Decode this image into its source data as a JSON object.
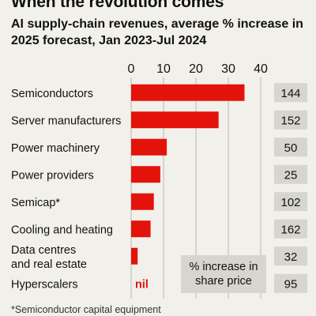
{
  "chart_data": {
    "type": "bar",
    "title": "When the revolution comes",
    "subtitle": "AI supply-chain revenues, average % increase in 2025 forecast, Jan 2023-Jul 2024",
    "xlim": [
      0,
      40
    ],
    "xticks": [
      0,
      10,
      20,
      30,
      40
    ],
    "bar_color": "#e3120b",
    "categories": [
      "Semiconductors",
      "Server manufacturers",
      "Power machinery",
      "Power providers",
      "Semicap*",
      "Cooling and heating",
      [
        "Data centres",
        "and real estate"
      ],
      "Hyperscalers"
    ],
    "values": [
      35,
      27,
      11,
      9,
      7,
      6,
      2,
      0
    ],
    "value_labels": [
      "",
      "",
      "",
      "",
      "",
      "",
      "",
      "nil"
    ],
    "share_price_label": [
      "% increase in",
      "share price"
    ],
    "share_price_values": [
      "144",
      "152",
      "50",
      "25",
      "102",
      "162",
      "32",
      "95"
    ],
    "footnote": "*Semiconductor capital equipment"
  }
}
